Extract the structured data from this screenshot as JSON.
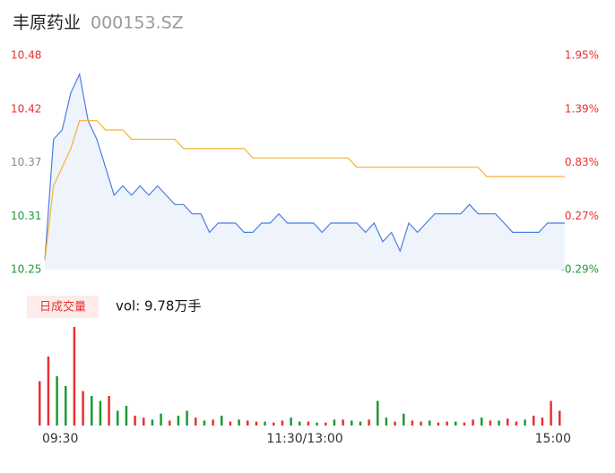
{
  "header": {
    "name": "丰原药业",
    "code": "000153.SZ"
  },
  "chart_data": [
    {
      "type": "line",
      "x": [
        0,
        4,
        8,
        12,
        16,
        20,
        24,
        28,
        32,
        36,
        40,
        44,
        48,
        52,
        56,
        60,
        64,
        68,
        72,
        76,
        80,
        84,
        88,
        92,
        96,
        100,
        104,
        108,
        112,
        116,
        120,
        124,
        128,
        132,
        136,
        140,
        144,
        148,
        152,
        156,
        160,
        164,
        168,
        172,
        176,
        180,
        184,
        188,
        192,
        196,
        200,
        204,
        208,
        212,
        216,
        220,
        224,
        228,
        232,
        236,
        240
      ],
      "series": [
        {
          "name": "price",
          "color": "#4a7fe0",
          "area_color": "#eef3fc",
          "values": [
            10.26,
            10.39,
            10.4,
            10.44,
            10.46,
            10.41,
            10.39,
            10.36,
            10.33,
            10.34,
            10.33,
            10.34,
            10.33,
            10.34,
            10.33,
            10.32,
            10.32,
            10.31,
            10.31,
            10.29,
            10.3,
            10.3,
            10.3,
            10.29,
            10.29,
            10.3,
            10.3,
            10.31,
            10.3,
            10.3,
            10.3,
            10.3,
            10.29,
            10.3,
            10.3,
            10.3,
            10.3,
            10.29,
            10.3,
            10.28,
            10.29,
            10.27,
            10.3,
            10.29,
            10.3,
            10.31,
            10.31,
            10.31,
            10.31,
            10.32,
            10.31,
            10.31,
            10.31,
            10.3,
            10.29,
            10.29,
            10.29,
            10.29,
            10.3,
            10.3,
            10.3
          ]
        },
        {
          "name": "average",
          "color": "#f5b332",
          "values": [
            10.26,
            10.34,
            10.36,
            10.38,
            10.41,
            10.41,
            10.41,
            10.4,
            10.4,
            10.4,
            10.39,
            10.39,
            10.39,
            10.39,
            10.39,
            10.39,
            10.38,
            10.38,
            10.38,
            10.38,
            10.38,
            10.38,
            10.38,
            10.38,
            10.37,
            10.37,
            10.37,
            10.37,
            10.37,
            10.37,
            10.37,
            10.37,
            10.37,
            10.37,
            10.37,
            10.37,
            10.36,
            10.36,
            10.36,
            10.36,
            10.36,
            10.36,
            10.36,
            10.36,
            10.36,
            10.36,
            10.36,
            10.36,
            10.36,
            10.36,
            10.36,
            10.35,
            10.35,
            10.35,
            10.35,
            10.35,
            10.35,
            10.35,
            10.35,
            10.35,
            10.35
          ]
        }
      ],
      "xlim": [
        0,
        240
      ],
      "ylim": [
        10.25,
        10.48
      ],
      "yticks": [
        {
          "value": 10.48,
          "label": "10.48"
        },
        {
          "value": 10.4225,
          "label": "10.42"
        },
        {
          "value": 10.365,
          "label": "10.37"
        },
        {
          "value": 10.3075,
          "label": "10.31"
        },
        {
          "value": 10.25,
          "label": "10.25"
        }
      ],
      "y2lim": [
        -0.29,
        1.95
      ],
      "y2ticks": [
        {
          "value": 1.95,
          "label": "1.95%"
        },
        {
          "value": 1.39,
          "label": "1.39%"
        },
        {
          "value": 0.83,
          "label": "0.83%"
        },
        {
          "value": 0.27,
          "label": "0.27%"
        },
        {
          "value": -0.29,
          "label": "-0.29%"
        }
      ],
      "up_color": "#e8312f",
      "down_color": "#1a9a36",
      "flat_color": "#8a8a8a"
    },
    {
      "type": "bar",
      "button": "日成交量",
      "summary": "vol: 9.78万手",
      "x": [
        0,
        4,
        8,
        12,
        16,
        20,
        24,
        28,
        32,
        36,
        40,
        44,
        48,
        52,
        56,
        60,
        64,
        68,
        72,
        76,
        80,
        84,
        88,
        92,
        96,
        100,
        104,
        108,
        112,
        116,
        120,
        124,
        128,
        132,
        136,
        140,
        144,
        148,
        152,
        156,
        160,
        164,
        168,
        172,
        176,
        180,
        184,
        188,
        192,
        196,
        200,
        204,
        208,
        212,
        216,
        220,
        224,
        228,
        232,
        236,
        240
      ],
      "values": [
        0.45,
        0.7,
        0.5,
        0.4,
        1.0,
        0.35,
        0.3,
        0.25,
        0.3,
        0.15,
        0.2,
        0.1,
        0.08,
        0.06,
        0.12,
        0.05,
        0.1,
        0.15,
        0.08,
        0.05,
        0.06,
        0.1,
        0.04,
        0.06,
        0.05,
        0.04,
        0.04,
        0.03,
        0.05,
        0.08,
        0.04,
        0.04,
        0.03,
        0.03,
        0.06,
        0.06,
        0.05,
        0.04,
        0.06,
        0.25,
        0.08,
        0.04,
        0.12,
        0.05,
        0.04,
        0.05,
        0.03,
        0.04,
        0.04,
        0.03,
        0.06,
        0.08,
        0.05,
        0.05,
        0.07,
        0.04,
        0.06,
        0.1,
        0.08,
        0.25,
        0.15
      ],
      "colors": [
        "#e8312f",
        "#e8312f",
        "#1a9a36",
        "#1a9a36",
        "#e8312f",
        "#e8312f",
        "#1a9a36",
        "#1a9a36",
        "#e8312f",
        "#1a9a36",
        "#1a9a36",
        "#e8312f",
        "#e8312f",
        "#1a9a36",
        "#1a9a36",
        "#e8312f",
        "#1a9a36",
        "#1a9a36",
        "#e8312f",
        "#1a9a36",
        "#e8312f",
        "#1a9a36",
        "#e8312f",
        "#1a9a36",
        "#e8312f",
        "#e8312f",
        "#1a9a36",
        "#e8312f",
        "#e8312f",
        "#1a9a36",
        "#1a9a36",
        "#e8312f",
        "#1a9a36",
        "#e8312f",
        "#1a9a36",
        "#e8312f",
        "#1a9a36",
        "#1a9a36",
        "#e8312f",
        "#1a9a36",
        "#1a9a36",
        "#e8312f",
        "#1a9a36",
        "#e8312f",
        "#e8312f",
        "#1a9a36",
        "#e8312f",
        "#e8312f",
        "#1a9a36",
        "#e8312f",
        "#e8312f",
        "#1a9a36",
        "#e8312f",
        "#1a9a36",
        "#e8312f",
        "#e8312f",
        "#1a9a36",
        "#e8312f",
        "#e8312f",
        "#e8312f",
        "#e8312f"
      ],
      "ylim": [
        0,
        1.0
      ],
      "xlim": [
        0,
        240
      ],
      "xticks": [
        {
          "value": 0,
          "label": "09:30"
        },
        {
          "value": 120,
          "label": "11:30/13:00"
        },
        {
          "value": 240,
          "label": "15:00"
        }
      ]
    }
  ]
}
